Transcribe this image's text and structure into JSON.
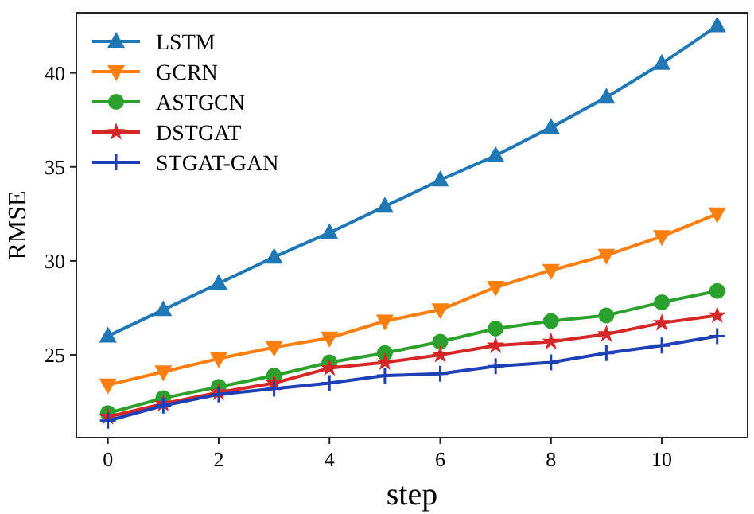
{
  "chart_data": {
    "type": "line",
    "xlabel": "step",
    "ylabel": "RMSE",
    "x": [
      0,
      1,
      2,
      3,
      4,
      5,
      6,
      7,
      8,
      9,
      10,
      11
    ],
    "xlim": [
      -0.57,
      11.55
    ],
    "xticks": [
      0,
      2,
      4,
      6,
      8,
      10
    ],
    "ylim": [
      20.6,
      43.2
    ],
    "yticks": [
      25,
      30,
      35,
      40
    ],
    "legend": "top left",
    "grid": false,
    "series": [
      {
        "name": "LSTM",
        "color": "#1f77b4",
        "marker": "triangle",
        "values": [
          26.0,
          27.4,
          28.8,
          30.2,
          31.5,
          32.9,
          34.3,
          35.6,
          37.1,
          38.7,
          40.5,
          42.5
        ]
      },
      {
        "name": "GCRN",
        "color": "#ff7f0e",
        "marker": "triangle-down",
        "values": [
          23.4,
          24.1,
          24.8,
          25.4,
          25.9,
          26.8,
          27.4,
          28.6,
          29.5,
          30.3,
          31.3,
          32.5
        ]
      },
      {
        "name": "ASTGCN",
        "color": "#2ca02c",
        "marker": "circle",
        "values": [
          21.9,
          22.7,
          23.3,
          23.9,
          24.6,
          25.1,
          25.7,
          26.4,
          26.8,
          27.1,
          27.8,
          28.4
        ]
      },
      {
        "name": "DSTGAT",
        "color": "#d62728",
        "marker": "star",
        "values": [
          21.7,
          22.4,
          23.0,
          23.5,
          24.3,
          24.6,
          25.0,
          25.5,
          25.7,
          26.1,
          26.7,
          27.1
        ]
      },
      {
        "name": "STGAT-GAN",
        "color": "#1f3fb4",
        "marker": "cross",
        "values": [
          21.5,
          22.3,
          22.9,
          23.2,
          23.5,
          23.9,
          24.0,
          24.4,
          24.6,
          25.1,
          25.5,
          26.0
        ]
      }
    ]
  }
}
